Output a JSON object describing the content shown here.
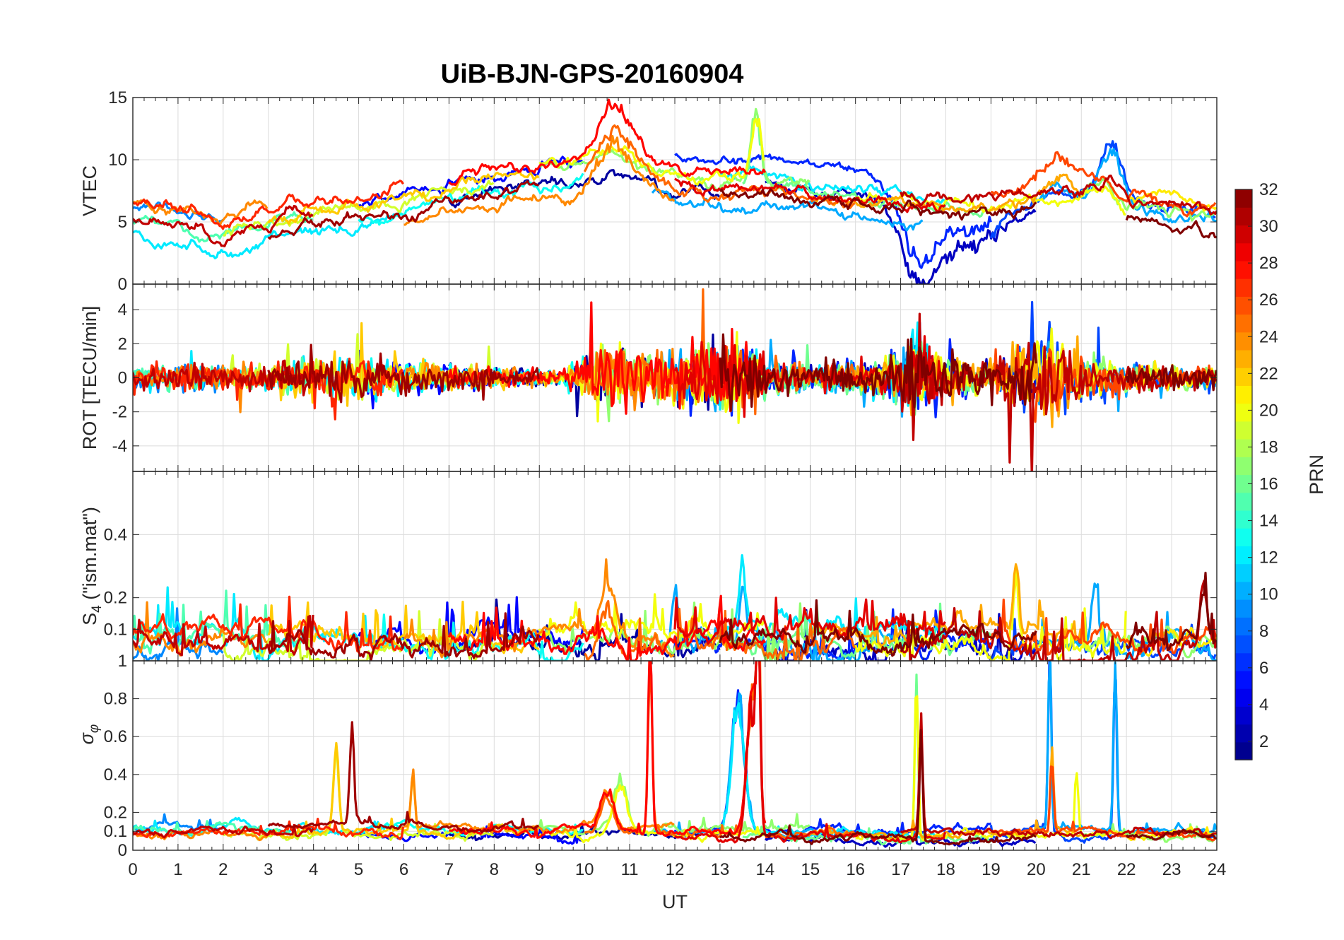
{
  "chart_data": {
    "type": "line",
    "title": "UiB-BJN-GPS-20160904",
    "xlabel": "UT",
    "xlim": [
      0,
      24
    ],
    "xticks": [
      0,
      1,
      2,
      3,
      4,
      5,
      6,
      7,
      8,
      9,
      10,
      11,
      12,
      13,
      14,
      15,
      16,
      17,
      18,
      19,
      20,
      21,
      22,
      23,
      24
    ],
    "grid": true,
    "colorbar": {
      "label": "PRN",
      "colormap": "jet",
      "range": [
        1,
        32
      ],
      "ticks": [
        2,
        4,
        6,
        8,
        10,
        12,
        14,
        16,
        18,
        20,
        22,
        24,
        26,
        28,
        30,
        32
      ]
    },
    "panels": [
      {
        "id": "vtec",
        "ylabel": "VTEC",
        "ylim": [
          0,
          15
        ],
        "yticks": [
          0,
          5,
          10,
          15
        ],
        "typical": [
          [
            0,
            5.2
          ],
          [
            1,
            4.6
          ],
          [
            2,
            4.0
          ],
          [
            3,
            4.8
          ],
          [
            4,
            5.6
          ],
          [
            5,
            5.8
          ],
          [
            6,
            6.6
          ],
          [
            7,
            7.6
          ],
          [
            8,
            8.3
          ],
          [
            9,
            8.9
          ],
          [
            10,
            8.9
          ],
          [
            10.6,
            10.0
          ],
          [
            11,
            9.6
          ],
          [
            12,
            8.3
          ],
          [
            13,
            8.0
          ],
          [
            14,
            7.9
          ],
          [
            15,
            7.4
          ],
          [
            16,
            6.9
          ],
          [
            17,
            6.5
          ],
          [
            18,
            6.1
          ],
          [
            19,
            6.0
          ],
          [
            20,
            6.4
          ],
          [
            21,
            6.8
          ],
          [
            21.6,
            7.4
          ],
          [
            22,
            6.0
          ],
          [
            23,
            5.3
          ],
          [
            24,
            5.1
          ]
        ],
        "spread": 1.0,
        "noise": 0.35,
        "events": [
          {
            "x": 10.7,
            "width": 0.55,
            "amp": 3.5,
            "prn": 25
          },
          {
            "x": 13.8,
            "width": 0.15,
            "amp": 5.5,
            "prn": 17
          },
          {
            "x": 17.4,
            "width": 0.5,
            "amp": -5.5,
            "prn": 3
          },
          {
            "x": 18.5,
            "width": 1.0,
            "amp": -3.5,
            "prn": 4
          },
          {
            "x": 20.5,
            "width": 0.6,
            "amp": 2.5,
            "prn": 25
          },
          {
            "x": 21.7,
            "width": 0.3,
            "amp": 3.0,
            "prn": 9
          }
        ]
      },
      {
        "id": "rot",
        "ylabel": "ROT [TECU/min]",
        "ylim": [
          -5.5,
          5.5
        ],
        "yticks": [
          -4,
          -2,
          0,
          2,
          4
        ],
        "typical": [
          [
            0,
            0
          ],
          [
            24,
            0
          ]
        ],
        "spread": 0.05,
        "activity": [
          [
            0,
            0.6
          ],
          [
            3,
            0.7
          ],
          [
            4.5,
            1.2
          ],
          [
            6,
            0.9
          ],
          [
            8,
            0.5
          ],
          [
            9.5,
            0.35
          ],
          [
            10.3,
            1.8
          ],
          [
            12,
            1.4
          ],
          [
            13.5,
            2.0
          ],
          [
            14,
            1.0
          ],
          [
            15,
            0.6
          ],
          [
            16.5,
            0.9
          ],
          [
            17.4,
            2.2
          ],
          [
            18,
            1.2
          ],
          [
            19,
            0.8
          ],
          [
            20.2,
            2.5
          ],
          [
            21,
            1.2
          ],
          [
            22,
            0.8
          ],
          [
            23,
            0.6
          ],
          [
            24,
            0.5
          ]
        ]
      },
      {
        "id": "s4",
        "ylabel": "S4 (\"ism.mat\")",
        "ylim": [
          0,
          0.6
        ],
        "yticks": [
          0.1,
          0.2,
          0.4
        ],
        "typical": [
          [
            0,
            0.06
          ],
          [
            24,
            0.06
          ]
        ],
        "spread": 0.02,
        "noise": 0.025,
        "peak_prob": 0.06,
        "peak_height": 0.12,
        "events": [
          {
            "x": 10.5,
            "width": 0.2,
            "amp": 0.15,
            "prn": 24
          },
          {
            "x": 12.0,
            "width": 0.1,
            "amp": 0.2,
            "prn": 11
          },
          {
            "x": 13.5,
            "width": 0.1,
            "amp": 0.17,
            "prn": 12
          },
          {
            "x": 19.55,
            "width": 0.08,
            "amp": 0.24,
            "prn": 22
          },
          {
            "x": 21.3,
            "width": 0.1,
            "amp": 0.18,
            "prn": 12
          },
          {
            "x": 23.7,
            "width": 0.1,
            "amp": 0.2,
            "prn": 30
          }
        ]
      },
      {
        "id": "sigma_phi",
        "ylabel": "σφ",
        "ylim": [
          0,
          1
        ],
        "yticks": [
          0,
          0.1,
          0.2,
          0.4,
          0.6,
          0.8,
          1
        ],
        "typical": [
          [
            0,
            0.09
          ],
          [
            24,
            0.09
          ]
        ],
        "spread": 0.015,
        "noise": 0.015,
        "peak_prob": 0.03,
        "peak_height": 0.06,
        "events": [
          {
            "x": 4.5,
            "width": 0.08,
            "amp": 0.4,
            "prn": 19
          },
          {
            "x": 4.85,
            "width": 0.06,
            "amp": 0.52,
            "prn": 32
          },
          {
            "x": 6.2,
            "width": 0.06,
            "amp": 0.3,
            "prn": 24
          },
          {
            "x": 10.5,
            "width": 0.2,
            "amp": 0.2,
            "prn": 25
          },
          {
            "x": 10.8,
            "width": 0.2,
            "amp": 0.25,
            "prn": 20
          },
          {
            "x": 11.45,
            "width": 0.06,
            "amp": 0.95,
            "prn": 28
          },
          {
            "x": 13.4,
            "width": 0.2,
            "amp": 0.7,
            "prn": 9
          },
          {
            "x": 13.7,
            "width": 0.15,
            "amp": 0.7,
            "prn": 27
          },
          {
            "x": 13.85,
            "width": 0.06,
            "amp": 0.95,
            "prn": 28
          },
          {
            "x": 17.35,
            "width": 0.05,
            "amp": 0.9,
            "prn": 17
          },
          {
            "x": 17.45,
            "width": 0.05,
            "amp": 0.55,
            "prn": 32
          },
          {
            "x": 20.3,
            "width": 0.05,
            "amp": 0.95,
            "prn": 8
          },
          {
            "x": 20.35,
            "width": 0.05,
            "amp": 0.4,
            "prn": 24
          },
          {
            "x": 20.9,
            "width": 0.05,
            "amp": 0.4,
            "prn": 17
          },
          {
            "x": 21.75,
            "width": 0.05,
            "amp": 0.95,
            "prn": 10
          }
        ]
      }
    ],
    "satellites": [
      {
        "prn": 2,
        "x": [
          7.0,
          13.0
        ]
      },
      {
        "prn": 3,
        "x": [
          14.0,
          20.0
        ]
      },
      {
        "prn": 5,
        "x": [
          5.0,
          10.0
        ]
      },
      {
        "prn": 6,
        "x": [
          12.0,
          19.0
        ]
      },
      {
        "prn": 7,
        "x": [
          19.0,
          24.0
        ]
      },
      {
        "prn": 9,
        "x": [
          0.0,
          2.0
        ]
      },
      {
        "prn": 10,
        "x": [
          11.5,
          17.5
        ]
      },
      {
        "prn": 10,
        "x": [
          20.0,
          24.0
        ]
      },
      {
        "prn": 12,
        "x": [
          0.0,
          6.0
        ]
      },
      {
        "prn": 12,
        "x": [
          13.0,
          18.0
        ]
      },
      {
        "prn": 13,
        "x": [
          5.0,
          10.0
        ]
      },
      {
        "prn": 15,
        "x": [
          0.0,
          4.0
        ]
      },
      {
        "prn": 16,
        "x": [
          13.5,
          19.0
        ]
      },
      {
        "prn": 17,
        "x": [
          9.0,
          15.0
        ]
      },
      {
        "prn": 17,
        "x": [
          21.0,
          24.0
        ]
      },
      {
        "prn": 19,
        "x": [
          2.0,
          8.0
        ]
      },
      {
        "prn": 20,
        "x": [
          9.0,
          14.0
        ]
      },
      {
        "prn": 20,
        "x": [
          16.0,
          22.0
        ]
      },
      {
        "prn": 21,
        "x": [
          22.0,
          24.0
        ]
      },
      {
        "prn": 22,
        "x": [
          3.0,
          9.0
        ]
      },
      {
        "prn": 23,
        "x": [
          15.0,
          21.0
        ]
      },
      {
        "prn": 24,
        "x": [
          0.0,
          3.0
        ]
      },
      {
        "prn": 24,
        "x": [
          6.0,
          12.0
        ]
      },
      {
        "prn": 25,
        "x": [
          10.0,
          16.0
        ]
      },
      {
        "prn": 26,
        "x": [
          19.0,
          24.0
        ]
      },
      {
        "prn": 27,
        "x": [
          0.0,
          6.0
        ]
      },
      {
        "prn": 28,
        "x": [
          7.0,
          14.0
        ]
      },
      {
        "prn": 29,
        "x": [
          12.0,
          18.0
        ]
      },
      {
        "prn": 30,
        "x": [
          0.0,
          4.0
        ]
      },
      {
        "prn": 30,
        "x": [
          17.0,
          24.0
        ]
      },
      {
        "prn": 31,
        "x": [
          3.0,
          9.0
        ]
      },
      {
        "prn": 32,
        "x": [
          13.0,
          20.0
        ]
      },
      {
        "prn": 32,
        "x": [
          22.0,
          24.0
        ]
      }
    ]
  }
}
